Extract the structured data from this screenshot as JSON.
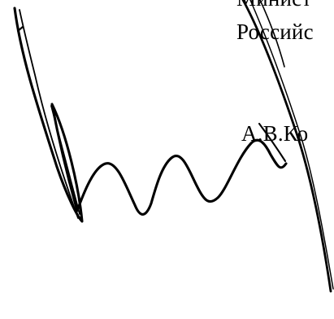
{
  "document": {
    "heading_lines": [
      "Минист",
      "Российс"
    ],
    "signatory": "А.В.Ко"
  },
  "signature": {
    "icon": "handwritten-signature",
    "color": "#000000"
  }
}
